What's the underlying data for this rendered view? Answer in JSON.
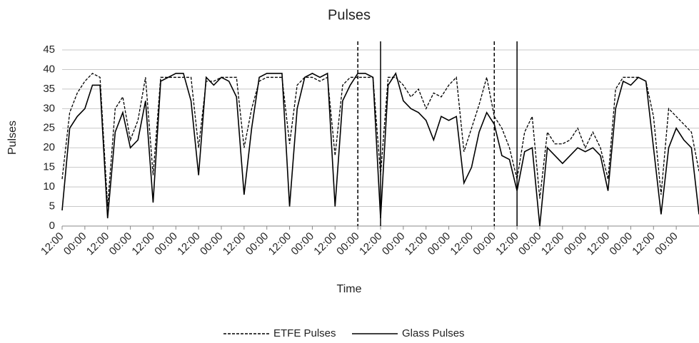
{
  "chart_data": {
    "type": "line",
    "title": "Pulses",
    "x_label": "Time",
    "y_label": "Pulses",
    "x": [
      0,
      4,
      8,
      12,
      16,
      20,
      24,
      28,
      32,
      36,
      40,
      44,
      48,
      52,
      56,
      60,
      64,
      68,
      72,
      76,
      80,
      84,
      88,
      92,
      96,
      100,
      104,
      108,
      112,
      116,
      120,
      124,
      128,
      132,
      136,
      140,
      144,
      148,
      152,
      156,
      160,
      164,
      168,
      172,
      176,
      180,
      184,
      188,
      192,
      196,
      200,
      204,
      208,
      212,
      216,
      220,
      224,
      228,
      232,
      236,
      240,
      244,
      248,
      252,
      256,
      260,
      264,
      268,
      272,
      276,
      280,
      284,
      288,
      292,
      296,
      300,
      304,
      308,
      312,
      316,
      320,
      324,
      328,
      332,
      336
    ],
    "series": [
      {
        "name": "ETFE Pulses",
        "color": "#000000",
        "dash": "dashed",
        "values": [
          12,
          29,
          34,
          37,
          39,
          38,
          5,
          30,
          33,
          22,
          27,
          38,
          13,
          38,
          38,
          38,
          38,
          38,
          20,
          37,
          37,
          38,
          38,
          38,
          20,
          30,
          37,
          38,
          38,
          38,
          21,
          36,
          38,
          38,
          37,
          38,
          18,
          36,
          38,
          38,
          38,
          38,
          13,
          38,
          38,
          36,
          33,
          35,
          30,
          34,
          33,
          36,
          38,
          19,
          25,
          31,
          38,
          28,
          25,
          20,
          12,
          24,
          28,
          7,
          24,
          21,
          21,
          22,
          25,
          20,
          24,
          20,
          12,
          35,
          38,
          38,
          38,
          37,
          28,
          8,
          30,
          28,
          26,
          24,
          14
        ]
      },
      {
        "name": "Glass Pulses",
        "color": "#000000",
        "dash": "solid",
        "values": [
          4,
          25,
          28,
          30,
          36,
          36,
          2,
          24,
          29,
          20,
          22,
          32,
          6,
          37,
          38,
          39,
          39,
          32,
          13,
          38,
          36,
          38,
          37,
          33,
          8,
          25,
          38,
          39,
          39,
          39,
          5,
          30,
          38,
          39,
          38,
          39,
          5,
          32,
          36,
          39,
          39,
          38,
          2,
          36,
          39,
          32,
          30,
          29,
          27,
          22,
          28,
          27,
          28,
          11,
          15,
          24,
          29,
          26,
          18,
          17,
          9,
          19,
          20,
          0,
          20,
          18,
          16,
          18,
          20,
          19,
          20,
          18,
          9,
          30,
          37,
          36,
          38,
          37,
          20,
          3,
          20,
          25,
          22,
          20,
          3
        ]
      }
    ],
    "xlim": [
      0,
      336
    ],
    "xticks": [
      {
        "value": 0,
        "label": "12:00"
      },
      {
        "value": 12,
        "label": "00:00"
      },
      {
        "value": 24,
        "label": "12:00"
      },
      {
        "value": 36,
        "label": "00:00"
      },
      {
        "value": 48,
        "label": "12:00"
      },
      {
        "value": 60,
        "label": "00:00"
      },
      {
        "value": 72,
        "label": "12:00"
      },
      {
        "value": 84,
        "label": "00:00"
      },
      {
        "value": 96,
        "label": "12:00"
      },
      {
        "value": 108,
        "label": "00:00"
      },
      {
        "value": 120,
        "label": "12:00"
      },
      {
        "value": 132,
        "label": "00:00"
      },
      {
        "value": 144,
        "label": "12:00"
      },
      {
        "value": 156,
        "label": "00:00"
      },
      {
        "value": 168,
        "label": "12:00"
      },
      {
        "value": 180,
        "label": "00:00"
      },
      {
        "value": 192,
        "label": "12:00"
      },
      {
        "value": 204,
        "label": "00:00"
      },
      {
        "value": 216,
        "label": "12:00"
      },
      {
        "value": 228,
        "label": "00:00"
      },
      {
        "value": 240,
        "label": "12:00"
      },
      {
        "value": 252,
        "label": "00:00"
      },
      {
        "value": 264,
        "label": "12:00"
      },
      {
        "value": 276,
        "label": "00:00"
      },
      {
        "value": 288,
        "label": "12:00"
      },
      {
        "value": 300,
        "label": "00:00"
      },
      {
        "value": 312,
        "label": "12:00"
      },
      {
        "value": 324,
        "label": "00:00"
      }
    ],
    "ylim": [
      0,
      45
    ],
    "yticks": [
      0,
      5,
      10,
      15,
      20,
      25,
      30,
      35,
      40,
      45
    ],
    "grid": true,
    "reference_lines": [
      {
        "x": 156,
        "style": "dashed"
      },
      {
        "x": 168,
        "style": "solid"
      },
      {
        "x": 228,
        "style": "dashed"
      },
      {
        "x": 240,
        "style": "solid"
      }
    ],
    "legend": "bottom"
  }
}
